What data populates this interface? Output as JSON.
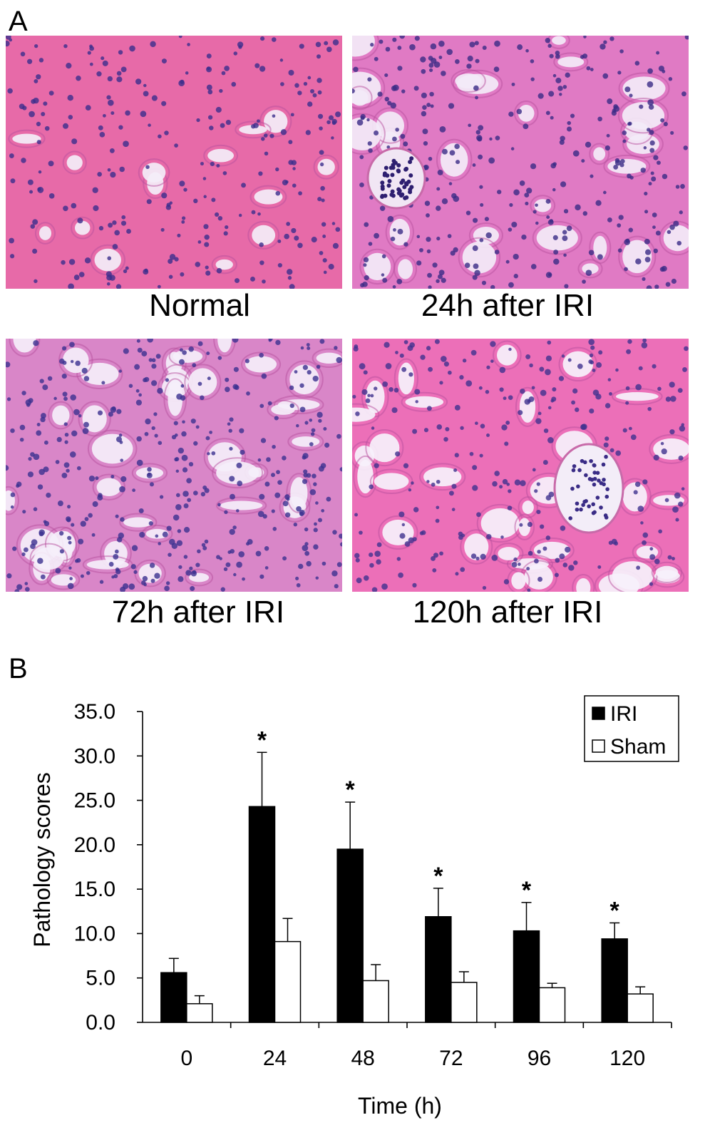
{
  "panel_a": {
    "label": "A",
    "images": [
      {
        "caption": "Normal",
        "palette": {
          "base": "#e76aa8",
          "lumen": "#f4eef8",
          "nuclei": "#3b2e8c"
        }
      },
      {
        "caption": "24h after IRI",
        "palette": {
          "base": "#e07ac4",
          "lumen": "#f3eaf7",
          "nuclei": "#3a2c86"
        }
      },
      {
        "caption": "72h after IRI",
        "palette": {
          "base": "#d986c8",
          "lumen": "#f5effa",
          "nuclei": "#3b3190"
        }
      },
      {
        "caption": "120h after IRI",
        "palette": {
          "base": "#ec6fb8",
          "lumen": "#f6f1fb",
          "nuclei": "#40328e"
        }
      }
    ]
  },
  "panel_b": {
    "label": "B"
  },
  "chart_data": {
    "type": "bar",
    "title": "",
    "xlabel": "Time (h)",
    "ylabel": "Pathology scores",
    "categories": [
      "0",
      "24",
      "48",
      "72",
      "96",
      "120"
    ],
    "ylim": [
      0,
      35
    ],
    "yticks": [
      "0.0",
      "5.0",
      "10.0",
      "15.0",
      "20.0",
      "25.0",
      "30.0",
      "35.0"
    ],
    "grid": false,
    "legend_position": "top-right",
    "series": [
      {
        "name": "IRI",
        "color": "#000000",
        "values": [
          5.6,
          24.3,
          19.5,
          11.9,
          10.3,
          9.4
        ],
        "errors": [
          1.6,
          6.1,
          5.3,
          3.2,
          3.2,
          1.8
        ],
        "significance": [
          "",
          "*",
          "*",
          "*",
          "*",
          "*"
        ]
      },
      {
        "name": "Sham",
        "color": "#ffffff",
        "values": [
          2.1,
          9.1,
          4.7,
          4.5,
          3.9,
          3.2
        ],
        "errors": [
          0.9,
          2.6,
          1.8,
          1.2,
          0.5,
          0.8
        ],
        "significance": [
          "",
          "",
          "",
          "",
          "",
          ""
        ]
      }
    ]
  }
}
